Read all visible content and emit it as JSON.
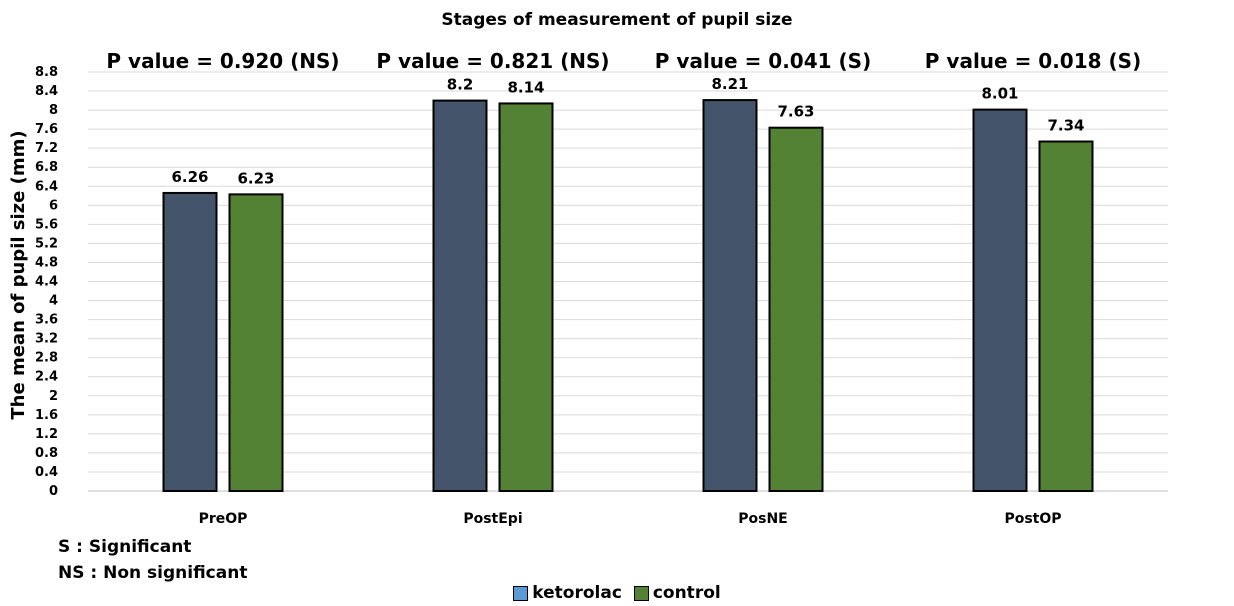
{
  "chart_data": {
    "type": "bar",
    "title": "Stages of measurement of pupil size",
    "ylabel": "The mean of pupil size (mm)",
    "xlabel": "",
    "ylim": [
      0,
      8.8
    ],
    "yticks": [
      "0",
      "0.4",
      "0.8",
      "1.2",
      "1.6",
      "2",
      "2.4",
      "2.8",
      "3.2",
      "3.6",
      "4",
      "4.4",
      "4.8",
      "5.2",
      "5.6",
      "6",
      "6.4",
      "6.8",
      "7.2",
      "7.6",
      "8",
      "8.4",
      "8.8"
    ],
    "categories": [
      "PreOP",
      "PostEpi",
      "PosNE",
      "PostOP"
    ],
    "series": [
      {
        "name": "ketorolac",
        "color": "#44546a",
        "legend_color": "#5b9bd5",
        "values": [
          6.26,
          8.2,
          8.21,
          8.01
        ],
        "labels": [
          "6.26",
          "8.2",
          "8.21",
          "8.01"
        ]
      },
      {
        "name": "control",
        "color": "#548235",
        "legend_color": "#548235",
        "values": [
          6.23,
          8.14,
          7.63,
          7.34
        ],
        "labels": [
          "6.23",
          "8.14",
          "7.63",
          "7.34"
        ]
      }
    ],
    "annotations": [
      "P value = 0.920 (NS)",
      "P value = 0.821 (NS)",
      "P value = 0.041 (S)",
      "P value = 0.018 (S)"
    ],
    "grid": true,
    "legend_position": "bottom"
  },
  "notes": {
    "significant": "S : Significant",
    "non_significant": "NS : Non significant"
  }
}
